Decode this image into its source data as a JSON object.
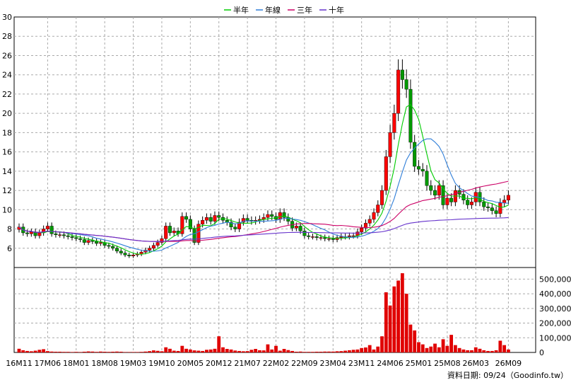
{
  "legend": [
    {
      "name": "半年",
      "color": "#00cc00"
    },
    {
      "name": "年線",
      "color": "#2f7ed8"
    },
    {
      "name": "三年",
      "color": "#cc0066"
    },
    {
      "name": "十年",
      "color": "#6633cc"
    }
  ],
  "footer": "資料日期: 09/24（Goodinfo.tw）",
  "colors": {
    "up": "#ff0000",
    "down": "#009900",
    "volume": "#e00000",
    "grid": "#aaaaaa"
  },
  "chart_data": {
    "type": "candlestick",
    "price_axis": {
      "min": 4,
      "max": 30,
      "ticks": [
        6,
        8,
        10,
        12,
        14,
        16,
        18,
        20,
        22,
        24,
        26,
        28,
        30
      ],
      "side": "left"
    },
    "volume_axis": {
      "min": 0,
      "max": 550000,
      "ticks": [
        "0",
        "100,000",
        "200,000",
        "300,000",
        "400,000",
        "500,000"
      ],
      "side": "right"
    },
    "x_labels": [
      "16M11",
      "17M06",
      "18M01",
      "18M08",
      "19M03",
      "19M10",
      "20M05",
      "20M12",
      "21M07",
      "22M02",
      "22M09",
      "23M04",
      "23M11",
      "24M06",
      "25M01",
      "25M08",
      "26M03",
      "26M09"
    ],
    "months_per_label": 7,
    "close": [
      8.2,
      7.6,
      7.5,
      7.7,
      7.3,
      7.6,
      8.0,
      8.3,
      7.5,
      7.4,
      7.4,
      7.3,
      7.2,
      7.1,
      7.0,
      6.9,
      6.6,
      6.8,
      6.7,
      6.5,
      6.6,
      6.3,
      6.2,
      6.0,
      5.7,
      5.5,
      5.3,
      5.2,
      5.3,
      5.4,
      5.6,
      5.8,
      6.0,
      6.3,
      6.6,
      7.0,
      8.3,
      7.6,
      7.8,
      7.5,
      9.3,
      9.0,
      8.0,
      6.6,
      8.5,
      8.9,
      9.2,
      8.8,
      9.4,
      9.2,
      8.9,
      8.7,
      8.2,
      8.0,
      8.7,
      9.1,
      8.9,
      8.8,
      8.9,
      9.0,
      9.2,
      9.5,
      9.3,
      9.0,
      9.7,
      9.2,
      8.8,
      8.1,
      8.3,
      7.8,
      7.3,
      7.2,
      7.2,
      7.1,
      7.1,
      7.0,
      7.0,
      6.9,
      7.1,
      7.2,
      7.2,
      7.3,
      7.3,
      7.7,
      8.1,
      8.6,
      9.0,
      9.7,
      10.5,
      12.0,
      15.5,
      18.0,
      20.0,
      24.5,
      23.5,
      22.5,
      17.0,
      14.5,
      14.2,
      14.0,
      12.5,
      12.0,
      11.5,
      12.5,
      10.5,
      11.2,
      10.8,
      12.0,
      11.6,
      11.0,
      10.5,
      10.8,
      11.8,
      10.8,
      10.3,
      10.2,
      9.9,
      9.6,
      10.7,
      11.0,
      11.5
    ],
    "volume": [
      25000,
      15000,
      10000,
      8000,
      12000,
      18000,
      22000,
      9000,
      6000,
      5000,
      5000,
      4000,
      4000,
      3000,
      4000,
      3000,
      5000,
      7000,
      6000,
      4000,
      6000,
      5000,
      4000,
      5000,
      6000,
      5000,
      3000,
      3000,
      3000,
      3000,
      4000,
      6000,
      9000,
      14000,
      11000,
      8000,
      35000,
      25000,
      12000,
      10000,
      45000,
      25000,
      20000,
      14000,
      12000,
      10000,
      18000,
      20000,
      25000,
      110000,
      35000,
      24000,
      20000,
      13000,
      10000,
      8000,
      9000,
      18000,
      24000,
      15000,
      14000,
      55000,
      20000,
      45000,
      12000,
      24000,
      16000,
      10000,
      5000,
      6000,
      4000,
      4000,
      4000,
      5000,
      5000,
      6000,
      6000,
      6000,
      8000,
      9000,
      12000,
      15000,
      18000,
      20000,
      30000,
      34000,
      50000,
      20000,
      40000,
      110000,
      410000,
      320000,
      450000,
      490000,
      540000,
      400000,
      190000,
      150000,
      70000,
      55000,
      30000,
      40000,
      60000,
      35000,
      90000,
      45000,
      120000,
      50000,
      30000,
      20000,
      15000,
      15000,
      35000,
      25000,
      15000,
      10000,
      10000,
      15000,
      80000,
      50000,
      20000
    ]
  }
}
